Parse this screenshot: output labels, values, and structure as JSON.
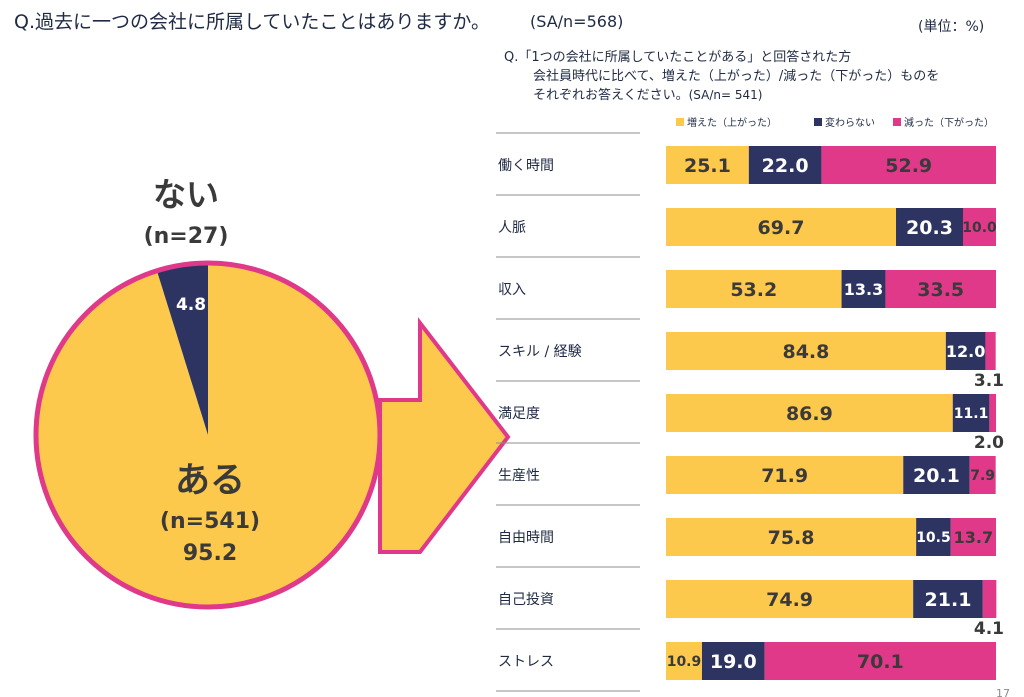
{
  "left_question": "Q.過去に一つの会社に所属していたことはありますか。",
  "left_sa": "(SA/n=568)",
  "unit_label": "(単位：%)",
  "right_question": {
    "line1": "Q.「1つの会社に所属していたことがある」と回答された方",
    "line2": "会社員時代に比べて、増えた（上がった）/減った（下がった）ものを",
    "line3": "それぞれお答えください。",
    "line3_sa": "(SA/n= 541)"
  },
  "page_number": "17",
  "colors": {
    "yellow": "#FDC94C",
    "navy": "#2D3461",
    "pink": "#E0398A",
    "rule": "#8C8C8C"
  },
  "chart_data": [
    {
      "type": "pie",
      "slices": [
        {
          "name": "ない",
          "n_label": "(n=27)",
          "value": 4.8,
          "value_label": "4.8",
          "color": "#2D3461"
        },
        {
          "name": "ある",
          "n_label": "(n=541)",
          "value": 95.2,
          "value_label": "95.2",
          "color": "#FDC94C"
        }
      ]
    },
    {
      "type": "bar",
      "orientation": "horizontal",
      "stacked": true,
      "legend_position": "top",
      "categories": [
        "働く時間",
        "人脈",
        "収入",
        "スキル / 経験",
        "満足度",
        "生産性",
        "自由時間",
        "自己投資",
        "ストレス"
      ],
      "series": [
        {
          "name": "増えた（上がった）",
          "color": "#FDC94C",
          "values": [
            25.1,
            69.7,
            53.2,
            84.8,
            86.9,
            71.9,
            75.8,
            74.9,
            10.9
          ]
        },
        {
          "name": "変わらない",
          "color": "#2D3461",
          "values": [
            22.0,
            20.3,
            13.3,
            12.0,
            11.1,
            20.1,
            10.5,
            21.1,
            19.0
          ]
        },
        {
          "name": "減った（下がった）",
          "color": "#E0398A",
          "values": [
            52.9,
            10.0,
            33.5,
            3.1,
            2.0,
            7.9,
            13.7,
            4.1,
            70.1
          ]
        }
      ],
      "xlim": [
        0,
        100
      ]
    }
  ]
}
